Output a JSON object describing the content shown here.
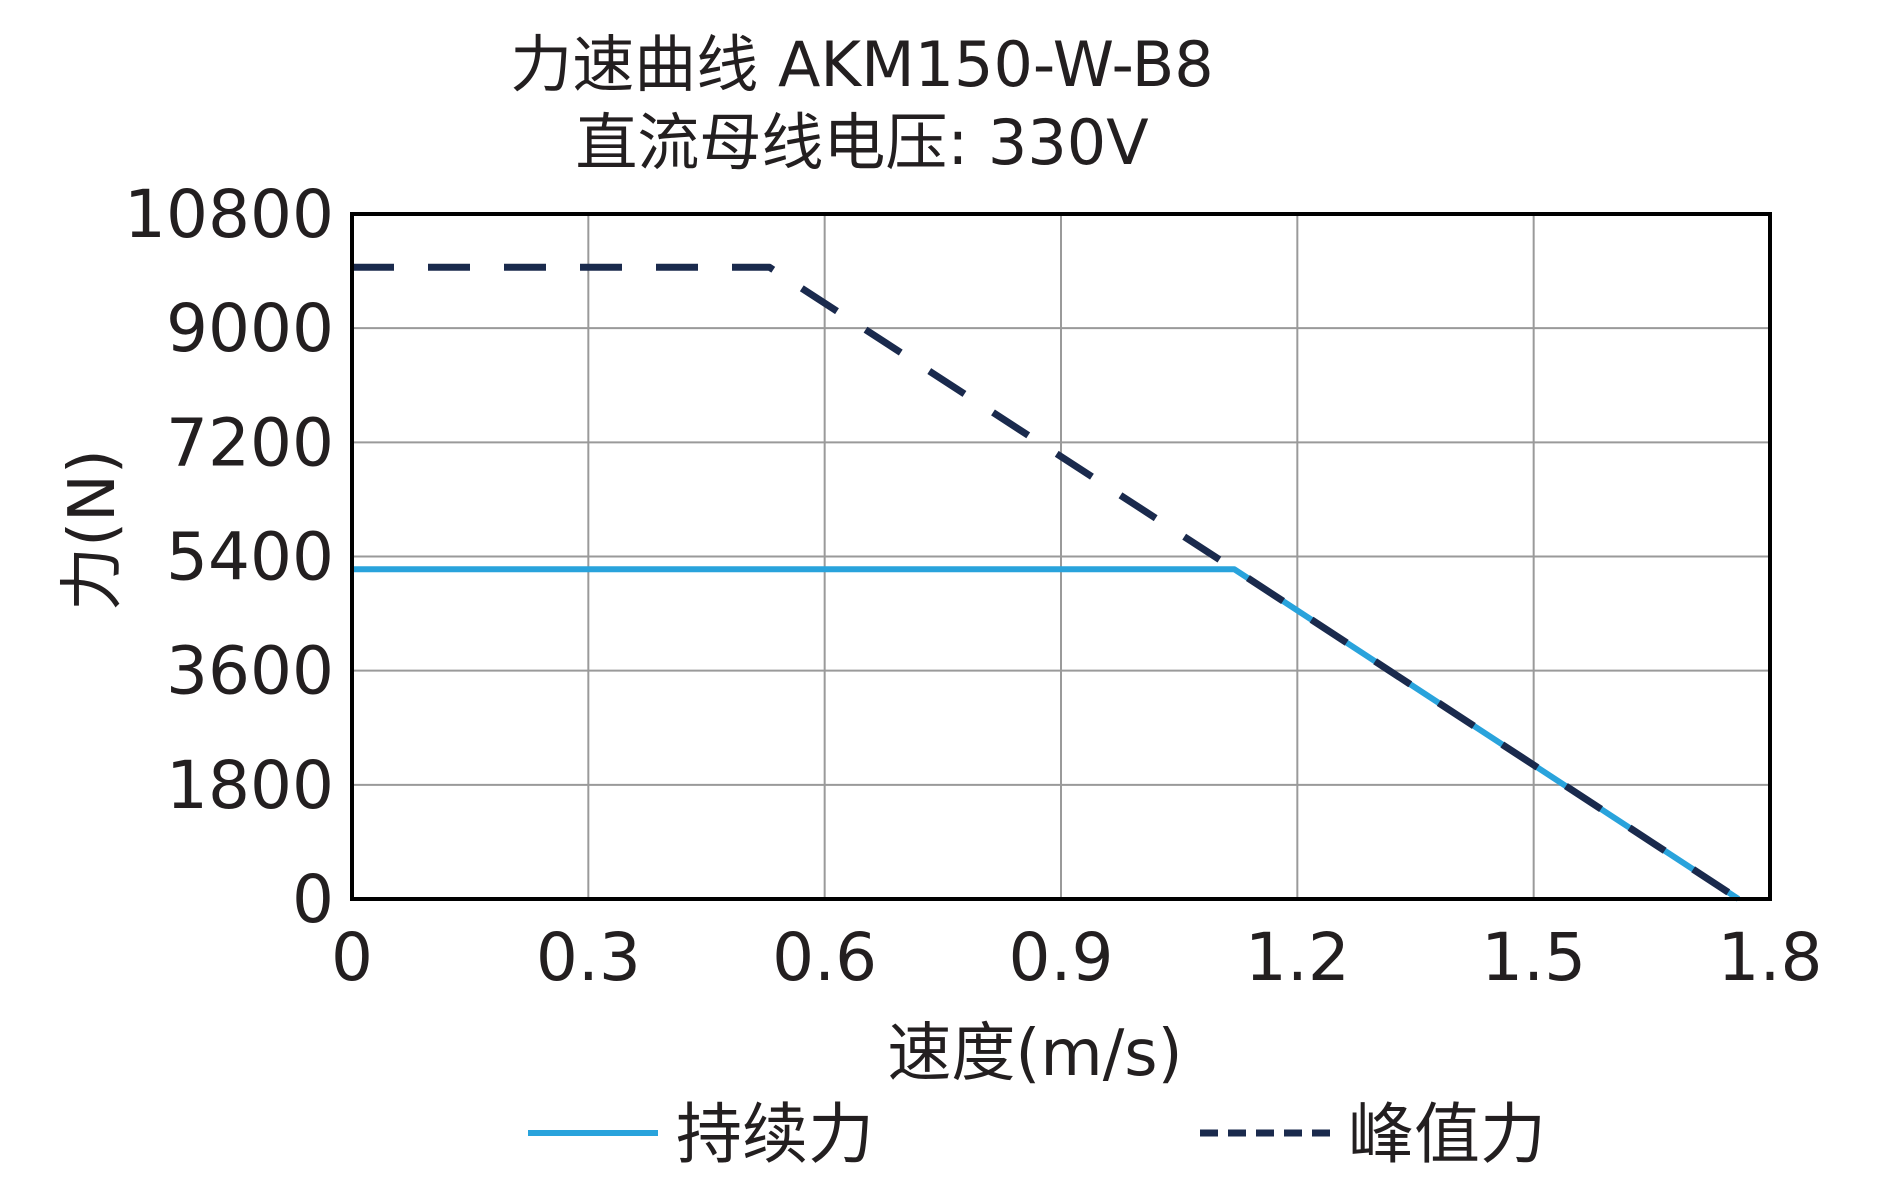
{
  "chart_data": {
    "type": "line",
    "title": "力速曲线 AKM150-W-B8",
    "subtitle": "直流母线电压: 330V",
    "xlabel": "速度(m/s)",
    "ylabel": "力(N)",
    "xlim": [
      0,
      1.8
    ],
    "ylim": [
      0,
      10800
    ],
    "x_ticks": [
      "0",
      "0.3",
      "0.6",
      "0.9",
      "1.2",
      "1.5",
      "1.8"
    ],
    "y_ticks": [
      "0",
      "1800",
      "3600",
      "5400",
      "7200",
      "9000",
      "10800"
    ],
    "x_tick_values": [
      0,
      0.3,
      0.6,
      0.9,
      1.2,
      1.5,
      1.8
    ],
    "y_tick_values": [
      0,
      1800,
      3600,
      5400,
      7200,
      9000,
      10800
    ],
    "grid": true,
    "legend_position": "bottom",
    "series": [
      {
        "name": "持续力",
        "color": "#29a3dc",
        "style": "solid",
        "points": [
          {
            "x": 0,
            "y": 5200
          },
          {
            "x": 1.12,
            "y": 5200
          },
          {
            "x": 1.76,
            "y": 0
          }
        ]
      },
      {
        "name": "峰值力",
        "color": "#1a2a4d",
        "style": "dashed",
        "points": [
          {
            "x": 0,
            "y": 9960
          },
          {
            "x": 0.53,
            "y": 9960
          },
          {
            "x": 1.12,
            "y": 5200
          },
          {
            "x": 1.76,
            "y": 0
          }
        ]
      }
    ]
  }
}
